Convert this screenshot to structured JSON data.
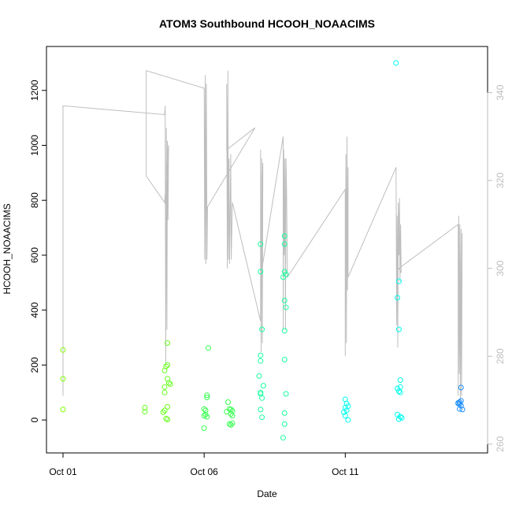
{
  "chart_data": {
    "type": "scatter",
    "title": "ATOM3 Southbound HCOOH_NOAACIMS",
    "xlabel": "Date",
    "ylabel": "HCOOH_NOAACIMS",
    "x_ticks": [
      "Oct 01",
      "Oct 06",
      "Oct 11"
    ],
    "y_ticks": [
      0,
      200,
      400,
      600,
      800,
      1000,
      1200
    ],
    "y2_ticks": [
      260,
      280,
      300,
      320,
      340
    ],
    "xlim": [
      0.0,
      14.4
    ],
    "ylim": [
      -120,
      1360
    ],
    "y2lim": [
      258,
      350.5
    ],
    "colors": {
      "axis": "#000000",
      "line": "#bebebe",
      "right_axis": "#bdbdbd"
    },
    "series": [
      {
        "color": "#7FFF00",
        "points": [
          [
            0.0,
            255
          ],
          [
            0.0,
            150
          ],
          [
            0.0,
            38
          ]
        ]
      },
      {
        "color": "#66FF1A",
        "points": [
          [
            2.9,
            45
          ],
          [
            2.9,
            30
          ],
          [
            3.7,
            280
          ],
          [
            3.7,
            200
          ],
          [
            3.65,
            195
          ],
          [
            3.6,
            180
          ],
          [
            3.7,
            150
          ],
          [
            3.75,
            135
          ],
          [
            3.6,
            120
          ],
          [
            3.6,
            100
          ],
          [
            3.8,
            130
          ],
          [
            3.7,
            48
          ],
          [
            3.55,
            28
          ],
          [
            3.6,
            35
          ],
          [
            3.65,
            5
          ],
          [
            3.7,
            2
          ]
        ]
      },
      {
        "color": "#33FF4D",
        "points": [
          [
            5.15,
            262
          ],
          [
            5.1,
            90
          ],
          [
            5.1,
            82
          ],
          [
            5.0,
            40
          ],
          [
            5.05,
            35
          ],
          [
            5.05,
            20
          ],
          [
            5.0,
            15
          ],
          [
            5.1,
            12
          ],
          [
            5.0,
            -30
          ],
          [
            5.85,
            65
          ],
          [
            5.9,
            40
          ],
          [
            5.95,
            38
          ],
          [
            6.0,
            33
          ],
          [
            5.8,
            30
          ],
          [
            5.95,
            22
          ],
          [
            6.0,
            15
          ],
          [
            5.9,
            -15
          ],
          [
            6.0,
            -12
          ],
          [
            5.95,
            -18
          ]
        ]
      },
      {
        "color": "#1AFFA0",
        "points": [
          [
            7.0,
            640
          ],
          [
            7.0,
            540
          ],
          [
            7.05,
            330
          ],
          [
            7.0,
            235
          ],
          [
            7.0,
            215
          ],
          [
            7.1,
            125
          ],
          [
            6.95,
            160
          ],
          [
            7.0,
            100
          ],
          [
            7.0,
            95
          ],
          [
            7.05,
            80
          ],
          [
            7.0,
            38
          ],
          [
            7.05,
            10
          ],
          [
            7.85,
            670
          ],
          [
            7.85,
            640
          ],
          [
            7.85,
            540
          ],
          [
            7.9,
            530
          ],
          [
            7.8,
            520
          ],
          [
            7.85,
            435
          ],
          [
            7.9,
            410
          ],
          [
            7.85,
            325
          ],
          [
            7.85,
            220
          ],
          [
            7.9,
            95
          ],
          [
            7.85,
            25
          ],
          [
            7.85,
            -15
          ],
          [
            7.8,
            -65
          ]
        ]
      },
      {
        "color": "#00FFEE",
        "points": [
          [
            11.8,
            1300
          ],
          [
            11.9,
            505
          ],
          [
            11.85,
            445
          ],
          [
            11.9,
            330
          ],
          [
            11.95,
            145
          ],
          [
            11.95,
            120
          ],
          [
            11.85,
            115
          ],
          [
            11.9,
            105
          ],
          [
            11.95,
            100
          ],
          [
            11.85,
            20
          ],
          [
            11.95,
            12
          ],
          [
            12.0,
            8
          ],
          [
            11.9,
            3
          ],
          [
            10.0,
            75
          ],
          [
            10.05,
            60
          ],
          [
            10.1,
            50
          ],
          [
            10.0,
            45
          ],
          [
            10.05,
            35
          ],
          [
            9.95,
            28
          ],
          [
            10.0,
            15
          ],
          [
            10.1,
            0
          ]
        ]
      },
      {
        "color": "#1E90FF",
        "points": [
          [
            14.1,
            118
          ],
          [
            14.05,
            65
          ],
          [
            14.0,
            60
          ],
          [
            14.05,
            58
          ],
          [
            14.1,
            52
          ],
          [
            14.15,
            38
          ],
          [
            14.05,
            40
          ],
          [
            14.0,
            62
          ],
          [
            14.1,
            70
          ]
        ]
      }
    ],
    "line_series": {
      "axis": "right",
      "color": "#bebebe",
      "points": [
        [
          0.0,
          271
        ],
        [
          0.0,
          337
        ],
        [
          3.6,
          335
        ],
        [
          3.62,
          337
        ],
        [
          3.64,
          278
        ],
        [
          3.66,
          332
        ],
        [
          3.68,
          286
        ],
        [
          3.7,
          329
        ],
        [
          3.72,
          311
        ],
        [
          3.74,
          328
        ],
        [
          3.6,
          315
        ],
        [
          2.95,
          321
        ],
        [
          2.95,
          345
        ],
        [
          5.0,
          341
        ],
        [
          5.02,
          302
        ],
        [
          5.04,
          344
        ],
        [
          5.06,
          301
        ],
        [
          5.08,
          342
        ],
        [
          5.1,
          302
        ],
        [
          5.12,
          314
        ],
        [
          6.8,
          332
        ],
        [
          5.8,
          327
        ],
        [
          5.8,
          342
        ],
        [
          5.82,
          300
        ],
        [
          5.84,
          345
        ],
        [
          5.86,
          302
        ],
        [
          5.88,
          325
        ],
        [
          5.9,
          301
        ],
        [
          5.92,
          311
        ],
        [
          5.94,
          326
        ],
        [
          5.96,
          302
        ],
        [
          6.0,
          315
        ],
        [
          7.0,
          288
        ],
        [
          7.0,
          327
        ],
        [
          7.02,
          281
        ],
        [
          7.04,
          325
        ],
        [
          7.06,
          283
        ],
        [
          7.08,
          324
        ],
        [
          7.0,
          298
        ],
        [
          7.8,
          330
        ],
        [
          7.8,
          286
        ],
        [
          7.82,
          327
        ],
        [
          7.84,
          303
        ],
        [
          7.86,
          325
        ],
        [
          7.88,
          286
        ],
        [
          7.9,
          325
        ],
        [
          7.92,
          318
        ],
        [
          7.95,
          298
        ],
        [
          10.0,
          318
        ],
        [
          10.0,
          280
        ],
        [
          10.02,
          326
        ],
        [
          10.04,
          283
        ],
        [
          10.06,
          330
        ],
        [
          10.08,
          295
        ],
        [
          10.1,
          323
        ],
        [
          10.1,
          298
        ],
        [
          11.8,
          323
        ],
        [
          11.82,
          287
        ],
        [
          11.84,
          312
        ],
        [
          11.86,
          282
        ],
        [
          11.88,
          315
        ],
        [
          11.9,
          303
        ],
        [
          11.92,
          316
        ],
        [
          11.94,
          297
        ],
        [
          11.96,
          310
        ],
        [
          11.98,
          299
        ],
        [
          11.9,
          300
        ],
        [
          14.0,
          310
        ],
        [
          14.0,
          271
        ],
        [
          14.02,
          312
        ],
        [
          14.04,
          276
        ],
        [
          14.06,
          310
        ],
        [
          14.08,
          268
        ],
        [
          14.1,
          309
        ],
        [
          14.12,
          271
        ],
        [
          14.14,
          308
        ]
      ]
    }
  }
}
